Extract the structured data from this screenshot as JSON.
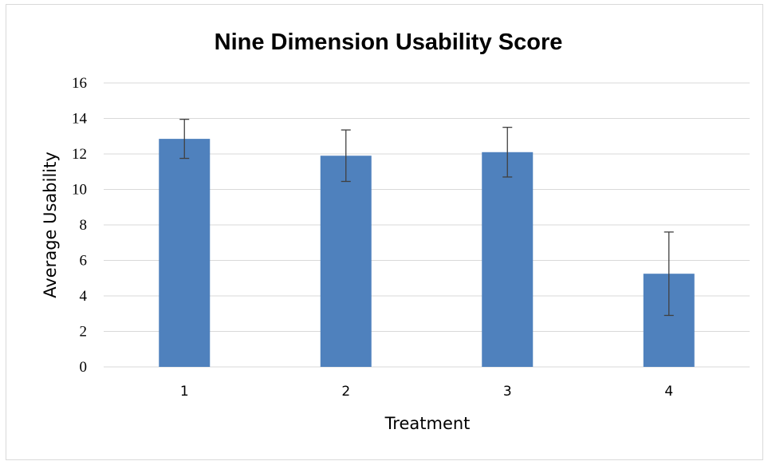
{
  "chart_data": {
    "type": "bar",
    "title": "Nine Dimension Usability Score",
    "xlabel": "Treatment",
    "ylabel": "Average Usability",
    "categories": [
      "1",
      "2",
      "3",
      "4"
    ],
    "values": [
      12.85,
      11.9,
      12.1,
      5.25
    ],
    "error_low": [
      11.75,
      10.45,
      10.7,
      2.9
    ],
    "error_high": [
      13.95,
      13.35,
      13.5,
      7.6
    ],
    "ylim": [
      0,
      16
    ],
    "yticks": [
      "0",
      "2",
      "4",
      "6",
      "8",
      "10",
      "12",
      "14",
      "16"
    ],
    "ytick_values": [
      0,
      2,
      4,
      6,
      8,
      10,
      12,
      14,
      16
    ],
    "grid": true,
    "legend": "none",
    "bar_color": "#4f81bd",
    "error_color": "#404040",
    "grid_color": "#d9d9d9"
  }
}
